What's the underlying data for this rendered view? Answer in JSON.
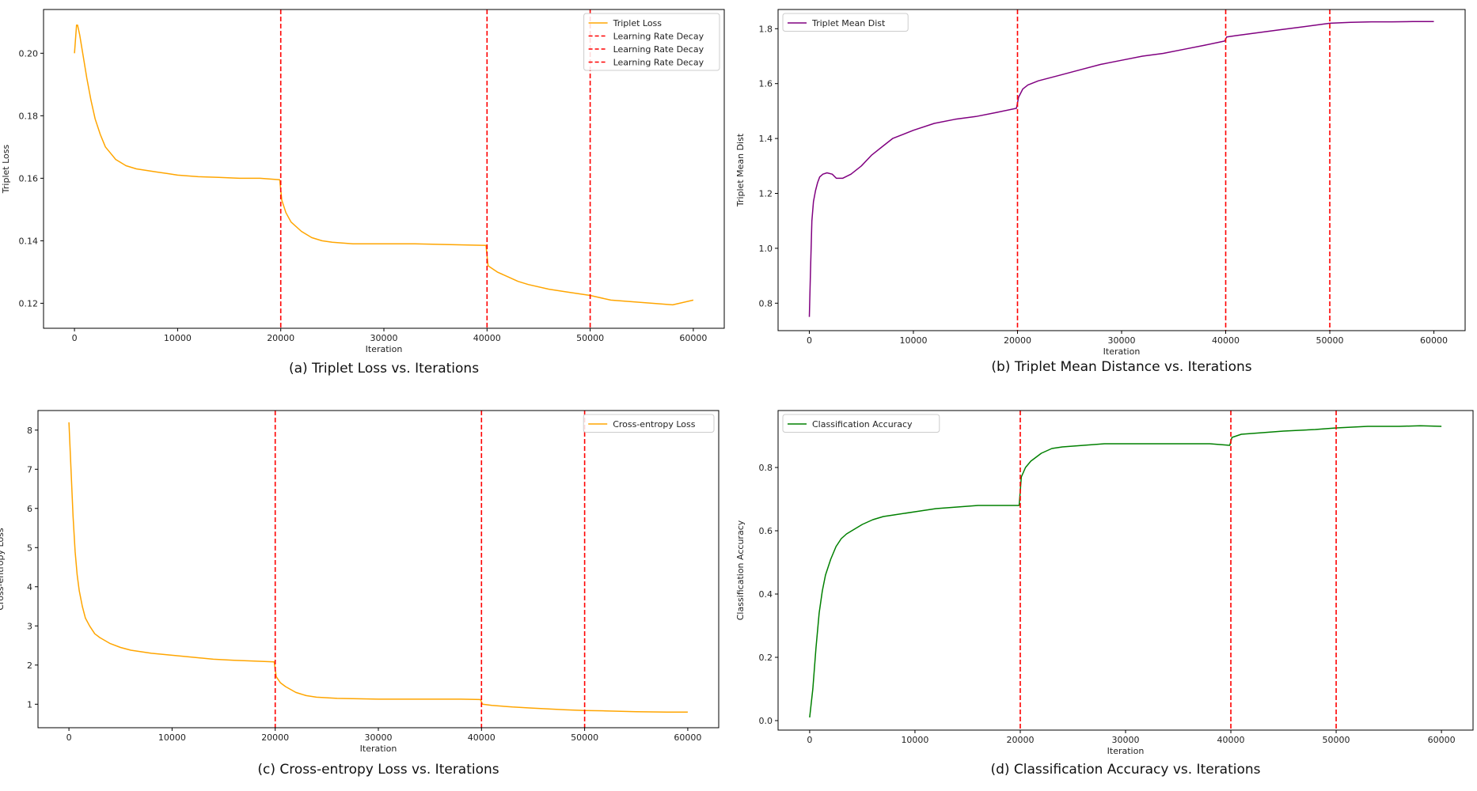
{
  "chart_data": [
    {
      "id": "a",
      "type": "line",
      "caption_letter": "(a)",
      "caption": "Triplet Loss vs. Iterations",
      "title": "",
      "xlabel": "Iteration",
      "ylabel": "Triplet Loss",
      "xlim": [
        -3000,
        63000
      ],
      "ylim": [
        0.112,
        0.214
      ],
      "xticks": [
        0,
        10000,
        20000,
        30000,
        40000,
        50000,
        60000
      ],
      "yticks": [
        0.12,
        0.14,
        0.16,
        0.18,
        0.2
      ],
      "ytick_labels": [
        "0.12",
        "0.14",
        "0.16",
        "0.18",
        "0.20"
      ],
      "legend_position": "upper-right",
      "series": [
        {
          "name": "Triplet Loss",
          "color": "#FFA500",
          "x": [
            0,
            200,
            300,
            500,
            800,
            1200,
            1600,
            2000,
            2500,
            3000,
            3500,
            4000,
            5000,
            6000,
            7000,
            8000,
            9000,
            10000,
            12000,
            14000,
            16000,
            18000,
            19900,
            20100,
            20500,
            21000,
            22000,
            23000,
            24000,
            25000,
            27000,
            30000,
            33000,
            36000,
            39900,
            40100,
            41000,
            42000,
            43000,
            44000,
            46000,
            48000,
            50000,
            52000,
            54000,
            56000,
            58000,
            60000
          ],
          "y": [
            0.2,
            0.209,
            0.209,
            0.206,
            0.2,
            0.192,
            0.185,
            0.179,
            0.174,
            0.17,
            0.168,
            0.166,
            0.164,
            0.163,
            0.1625,
            0.162,
            0.1615,
            0.161,
            0.1605,
            0.1603,
            0.16,
            0.16,
            0.1595,
            0.153,
            0.149,
            0.146,
            0.143,
            0.141,
            0.14,
            0.1395,
            0.139,
            0.139,
            0.139,
            0.1388,
            0.1385,
            0.132,
            0.13,
            0.1285,
            0.127,
            0.126,
            0.1245,
            0.1235,
            0.1225,
            0.121,
            0.1205,
            0.12,
            0.1195,
            0.121
          ]
        }
      ],
      "vlines": {
        "name": "Learning Rate Decay",
        "color": "#FF0000",
        "x": [
          20000,
          40000,
          50000
        ]
      }
    },
    {
      "id": "b",
      "type": "line",
      "caption_letter": "(b)",
      "caption": "Triplet Mean Distance vs. Iterations",
      "title": "",
      "xlabel": "Iteration",
      "ylabel": "Triplet Mean Dist",
      "xlim": [
        -3000,
        63000
      ],
      "ylim": [
        0.7,
        1.87
      ],
      "xticks": [
        0,
        10000,
        20000,
        30000,
        40000,
        50000,
        60000
      ],
      "yticks": [
        0.8,
        1.0,
        1.2,
        1.4,
        1.6,
        1.8
      ],
      "ytick_labels": [
        "0.8",
        "1.0",
        "1.2",
        "1.4",
        "1.6",
        "1.8"
      ],
      "legend_position": "upper-left",
      "series": [
        {
          "name": "Triplet Mean Dist",
          "color": "#800080",
          "x": [
            0,
            100,
            250,
            400,
            600,
            800,
            1000,
            1300,
            1700,
            2200,
            2600,
            3200,
            4000,
            5000,
            6000,
            7000,
            8000,
            10000,
            12000,
            14000,
            16000,
            18000,
            19900,
            20100,
            20500,
            21000,
            22000,
            24000,
            26000,
            28000,
            30000,
            32000,
            34000,
            36000,
            38000,
            39900,
            40100,
            41000,
            43000,
            45000,
            47000,
            49000,
            50000,
            52000,
            54000,
            56000,
            58000,
            60000
          ],
          "y": [
            0.75,
            0.9,
            1.1,
            1.17,
            1.21,
            1.24,
            1.26,
            1.27,
            1.275,
            1.27,
            1.255,
            1.255,
            1.27,
            1.3,
            1.34,
            1.37,
            1.4,
            1.43,
            1.455,
            1.47,
            1.48,
            1.495,
            1.51,
            1.55,
            1.58,
            1.595,
            1.61,
            1.63,
            1.65,
            1.67,
            1.685,
            1.7,
            1.71,
            1.725,
            1.74,
            1.755,
            1.77,
            1.775,
            1.785,
            1.795,
            1.805,
            1.815,
            1.82,
            1.823,
            1.825,
            1.825,
            1.826,
            1.826
          ]
        }
      ],
      "vlines": {
        "name": "Learning Rate Decay",
        "color": "#FF0000",
        "x": [
          20000,
          40000,
          50000
        ]
      }
    },
    {
      "id": "c",
      "type": "line",
      "caption_letter": "(c)",
      "caption": "Cross-entropy Loss vs. Iterations",
      "title": "",
      "xlabel": "Iteration",
      "ylabel": "Cross-entropy Loss",
      "xlim": [
        -3000,
        63000
      ],
      "ylim": [
        0.4,
        8.5
      ],
      "xticks": [
        0,
        10000,
        20000,
        30000,
        40000,
        50000,
        60000
      ],
      "yticks": [
        1,
        2,
        3,
        4,
        5,
        6,
        7,
        8
      ],
      "ytick_labels": [
        "1",
        "2",
        "3",
        "4",
        "5",
        "6",
        "7",
        "8"
      ],
      "legend_position": "upper-right",
      "series": [
        {
          "name": "Cross-entropy Loss",
          "color": "#FFA500",
          "x": [
            0,
            200,
            400,
            600,
            800,
            1000,
            1300,
            1600,
            2000,
            2500,
            3000,
            4000,
            5000,
            6000,
            8000,
            10000,
            12000,
            14000,
            16000,
            18000,
            19900,
            20100,
            20500,
            21000,
            22000,
            23000,
            24000,
            26000,
            30000,
            34000,
            38000,
            39900,
            40100,
            41000,
            43000,
            45000,
            48000,
            50000,
            52000,
            55000,
            58000,
            60000
          ],
          "y": [
            8.2,
            7.0,
            5.8,
            4.9,
            4.3,
            3.9,
            3.5,
            3.2,
            3.0,
            2.8,
            2.7,
            2.55,
            2.45,
            2.38,
            2.3,
            2.25,
            2.2,
            2.15,
            2.12,
            2.1,
            2.08,
            1.7,
            1.55,
            1.45,
            1.3,
            1.22,
            1.18,
            1.15,
            1.13,
            1.13,
            1.13,
            1.12,
            1.0,
            0.97,
            0.93,
            0.9,
            0.86,
            0.84,
            0.83,
            0.81,
            0.8,
            0.8
          ]
        }
      ],
      "vlines": {
        "name": "Learning Rate Decay",
        "color": "#FF0000",
        "x": [
          20000,
          40000,
          50000
        ]
      }
    },
    {
      "id": "d",
      "type": "line",
      "caption_letter": "(d)",
      "caption": "Classification Accuracy vs. Iterations",
      "title": "",
      "xlabel": "Iteration",
      "ylabel": "Classification Accuracy",
      "xlim": [
        -3000,
        63000
      ],
      "ylim": [
        -0.03,
        0.98
      ],
      "xticks": [
        0,
        10000,
        20000,
        30000,
        40000,
        50000,
        60000
      ],
      "yticks": [
        0.0,
        0.2,
        0.4,
        0.6,
        0.8
      ],
      "ytick_labels": [
        "0.0",
        "0.2",
        "0.4",
        "0.6",
        "0.8"
      ],
      "legend_position": "upper-left",
      "series": [
        {
          "name": "Classification Accuracy",
          "color": "#008000",
          "x": [
            0,
            300,
            600,
            900,
            1200,
            1500,
            2000,
            2500,
            3000,
            3500,
            4000,
            5000,
            6000,
            7000,
            8000,
            10000,
            12000,
            14000,
            16000,
            18000,
            19900,
            20100,
            20500,
            21000,
            22000,
            23000,
            24000,
            26000,
            28000,
            30000,
            34000,
            38000,
            39900,
            40100,
            41000,
            43000,
            45000,
            48000,
            50000,
            53000,
            56000,
            58000,
            60000
          ],
          "y": [
            0.01,
            0.1,
            0.23,
            0.34,
            0.41,
            0.46,
            0.51,
            0.55,
            0.575,
            0.59,
            0.6,
            0.62,
            0.635,
            0.645,
            0.65,
            0.66,
            0.67,
            0.675,
            0.68,
            0.68,
            0.68,
            0.77,
            0.8,
            0.82,
            0.845,
            0.86,
            0.865,
            0.87,
            0.875,
            0.875,
            0.875,
            0.875,
            0.87,
            0.895,
            0.905,
            0.91,
            0.915,
            0.92,
            0.925,
            0.93,
            0.93,
            0.932,
            0.93
          ]
        }
      ],
      "vlines": {
        "name": "Learning Rate Decay",
        "color": "#FF0000",
        "x": [
          20000,
          40000,
          50000
        ]
      }
    }
  ]
}
